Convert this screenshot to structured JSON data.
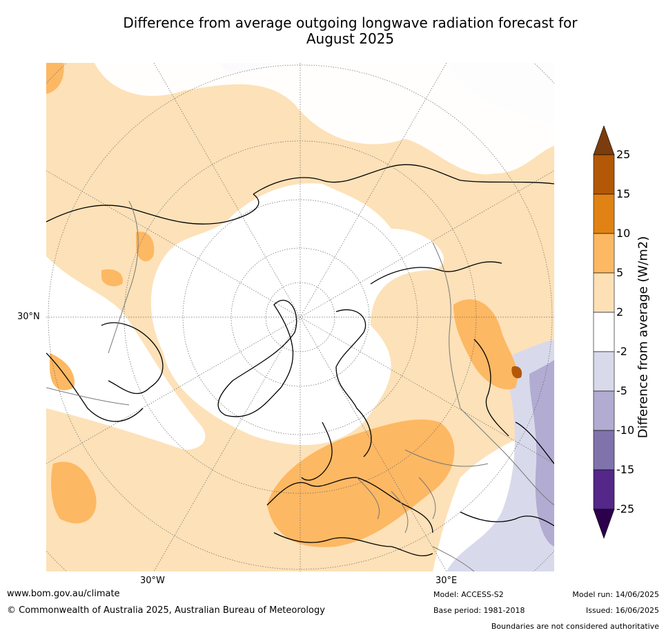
{
  "title": "Difference from average outgoing longwave radiation forecast for August 2025",
  "map": {
    "projection": "north-polar-stereographic",
    "lon_labels": [
      "30°W",
      "30°E"
    ],
    "lat_label": "30°N"
  },
  "colorbar": {
    "title": "Difference from average (W/m2)",
    "ticks": [
      "25",
      "15",
      "10",
      "5",
      "2",
      "-2",
      "-5",
      "-10",
      "-15",
      "-25"
    ],
    "colors": [
      "#7b3d0d",
      "#b35806",
      "#e08214",
      "#fdb863",
      "#fee0b6",
      "#ffffff",
      "#d8daeb",
      "#b2abd2",
      "#8073ac",
      "#542788",
      "#2d004b"
    ]
  },
  "footer": {
    "url": "www.bom.gov.au/climate",
    "copyright": "© Commonwealth of Australia 2025, Australian Bureau of Meteorology",
    "model": "Model: ACCESS-S2",
    "base_period": "Base period: 1981-2018",
    "model_run": "Model run: 14/06/2025",
    "issued": "Issued: 16/06/2025",
    "disclaimer": "Boundaries are not considered authoritative"
  }
}
